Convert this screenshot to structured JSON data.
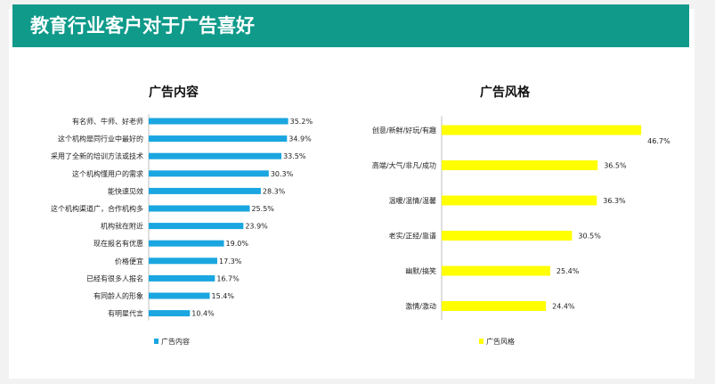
{
  "header": {
    "title": "教育行业客户对于广告喜好"
  },
  "chart_data": [
    {
      "type": "bar",
      "orientation": "horizontal",
      "title": "广告内容",
      "legend": "广告内容",
      "color": "#1aa6e0",
      "categories": [
        "有名师、牛师、好老师",
        "这个机构是同行业中最好的",
        "采用了全新的培训方法或技术",
        "这个机构懂用户的需求",
        "能快速见效",
        "这个机构渠道广，合作机构多",
        "机构就在附近",
        "现在报名有优惠",
        "价格便宜",
        "已经有很多人报名",
        "有同龄人的形象",
        "有明星代言"
      ],
      "values": [
        35.2,
        34.9,
        33.5,
        30.3,
        28.3,
        25.5,
        23.9,
        19.0,
        17.3,
        16.7,
        15.4,
        10.4
      ],
      "value_labels": [
        "35.2%",
        "34.9%",
        "33.5%",
        "30.3%",
        "28.3%",
        "25.5%",
        "23.9%",
        "19.0%",
        "17.3%",
        "16.7%",
        "15.4%",
        "10.4%"
      ],
      "unit": "%"
    },
    {
      "type": "bar",
      "orientation": "horizontal",
      "title": "广告风格",
      "legend": "广告风格",
      "color": "#ffff00",
      "categories": [
        "创意/新鲜/好玩/有趣",
        "高端/大气/非凡/成功",
        "温暖/温情/温馨",
        "老实/正经/靠谱",
        "幽默/搞笑",
        "激情/激动"
      ],
      "values": [
        46.7,
        36.5,
        36.3,
        30.5,
        25.4,
        24.4
      ],
      "value_labels": [
        "46.7%",
        "36.5%",
        "36.3%",
        "30.5%",
        "25.4%",
        "24.4%"
      ],
      "unit": "%"
    }
  ]
}
